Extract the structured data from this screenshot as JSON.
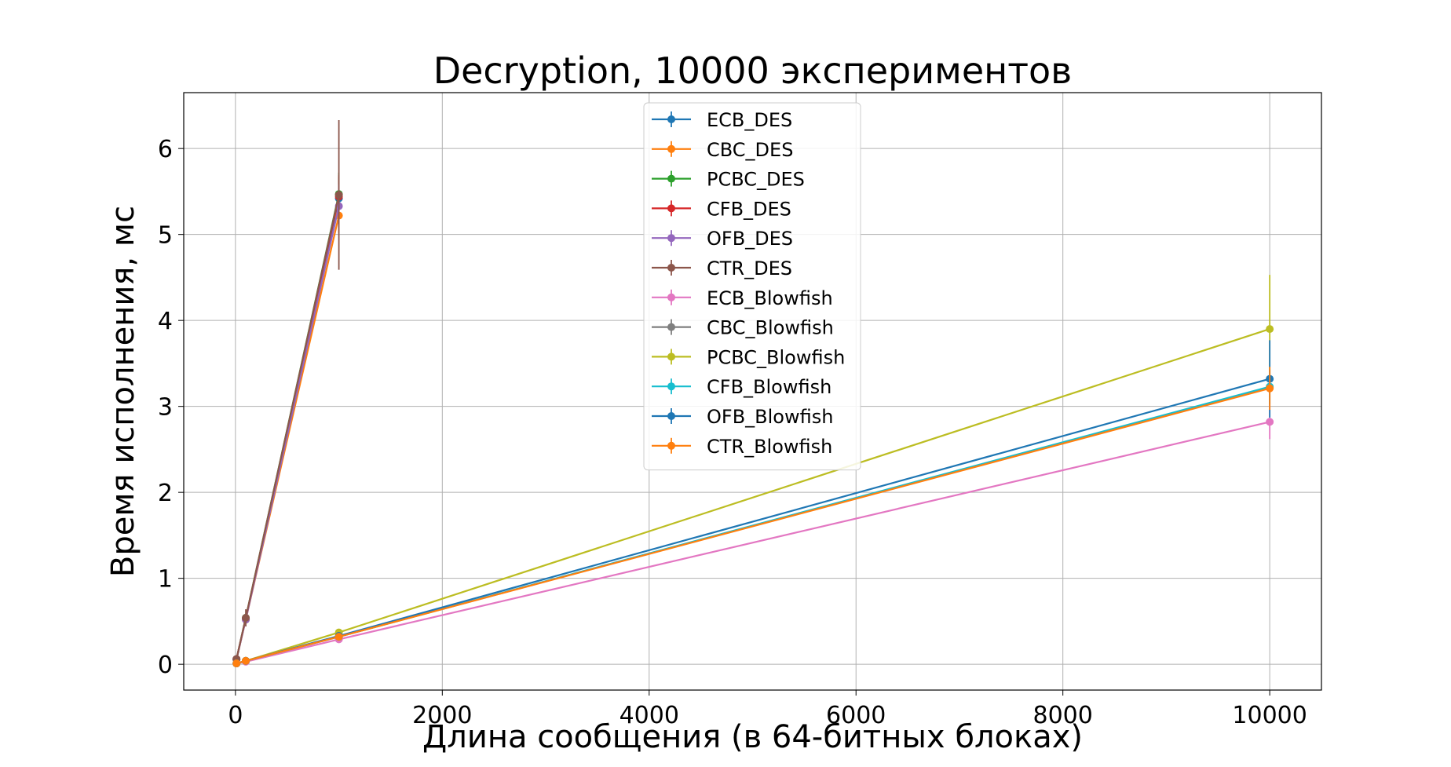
{
  "chart_data": {
    "type": "line",
    "title": "Decryption, 10000 экспериментов",
    "xlabel": "Длина сообщения (в 64-битных блоках)",
    "ylabel": "Время исполнения, мс",
    "xlim": [
      -500,
      10500
    ],
    "ylim": [
      -0.3,
      6.65
    ],
    "xticks": [
      0,
      2000,
      4000,
      6000,
      8000,
      10000
    ],
    "yticks": [
      0,
      1,
      2,
      3,
      4,
      5,
      6
    ],
    "grid": true,
    "legend_position": "upper center",
    "error_bars": true,
    "series": [
      {
        "name": "ECB_DES",
        "color": "#1f77b4",
        "x": [
          10,
          100,
          1000
        ],
        "y": [
          0.06,
          0.53,
          5.42
        ],
        "err": [
          0.01,
          0.05,
          0.25
        ]
      },
      {
        "name": "CBC_DES",
        "color": "#ff7f0e",
        "x": [
          10,
          100,
          1000
        ],
        "y": [
          0.06,
          0.52,
          5.22
        ],
        "err": [
          0.01,
          0.05,
          0.2
        ]
      },
      {
        "name": "PCBC_DES",
        "color": "#2ca02c",
        "x": [
          10,
          100,
          1000
        ],
        "y": [
          0.06,
          0.54,
          5.47
        ],
        "err": [
          0.01,
          0.05,
          0.25
        ]
      },
      {
        "name": "CFB_DES",
        "color": "#d62728",
        "x": [
          10,
          100,
          1000
        ],
        "y": [
          0.06,
          0.53,
          5.44
        ],
        "err": [
          0.01,
          0.05,
          0.25
        ]
      },
      {
        "name": "OFB_DES",
        "color": "#9467bd",
        "x": [
          10,
          100,
          1000
        ],
        "y": [
          0.06,
          0.52,
          5.33
        ],
        "err": [
          0.01,
          0.05,
          0.25
        ]
      },
      {
        "name": "CTR_DES",
        "color": "#8c564b",
        "x": [
          10,
          100,
          1000
        ],
        "y": [
          0.06,
          0.54,
          5.46
        ],
        "err": [
          0.01,
          0.1,
          0.87
        ]
      },
      {
        "name": "ECB_Blowfish",
        "color": "#e377c2",
        "x": [
          10,
          100,
          1000,
          10000
        ],
        "y": [
          0.01,
          0.03,
          0.29,
          2.82
        ],
        "err": [
          0.005,
          0.01,
          0.02,
          0.2
        ]
      },
      {
        "name": "CBC_Blowfish",
        "color": "#7f7f7f",
        "x": [
          10,
          100,
          1000,
          10000
        ],
        "y": [
          0.01,
          0.04,
          0.32,
          3.22
        ],
        "err": [
          0.005,
          0.01,
          0.02,
          0.2
        ]
      },
      {
        "name": "PCBC_Blowfish",
        "color": "#bcbd22",
        "x": [
          10,
          100,
          1000,
          10000
        ],
        "y": [
          0.01,
          0.04,
          0.37,
          3.9
        ],
        "err": [
          0.005,
          0.01,
          0.02,
          0.63
        ]
      },
      {
        "name": "CFB_Blowfish",
        "color": "#17becf",
        "x": [
          10,
          100,
          1000,
          10000
        ],
        "y": [
          0.01,
          0.04,
          0.32,
          3.23
        ],
        "err": [
          0.005,
          0.01,
          0.02,
          0.2
        ]
      },
      {
        "name": "OFB_Blowfish",
        "color": "#1f77b4",
        "x": [
          10,
          100,
          1000,
          10000
        ],
        "y": [
          0.01,
          0.04,
          0.33,
          3.32
        ],
        "err": [
          0.005,
          0.01,
          0.02,
          0.45
        ]
      },
      {
        "name": "CTR_Blowfish",
        "color": "#ff7f0e",
        "x": [
          10,
          100,
          1000,
          10000
        ],
        "y": [
          0.01,
          0.04,
          0.32,
          3.21
        ],
        "err": [
          0.005,
          0.01,
          0.02,
          0.25
        ]
      }
    ]
  }
}
